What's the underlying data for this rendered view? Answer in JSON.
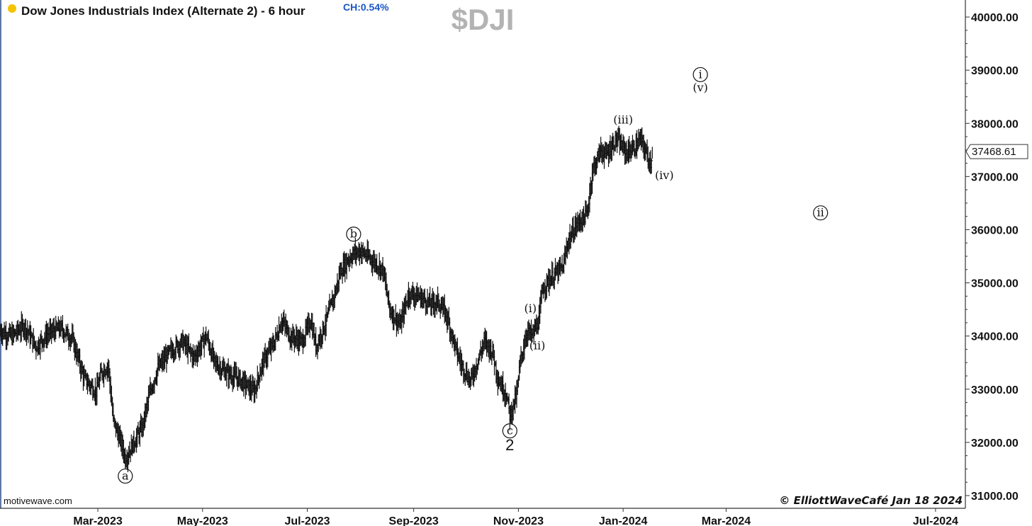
{
  "header": {
    "title": "Dow Jones Industrials Index (Alternate 2) - 6 hour",
    "change": "CH:0.54%",
    "symbol": "$DJI",
    "status_dot_color": "#f5c400"
  },
  "footer": {
    "source": "motivewave.com",
    "copyright": "© ElliottWaveCafé Jan 18 2024"
  },
  "last_price": {
    "label": "37468.61",
    "value": 37468.61
  },
  "chart_data": {
    "type": "bar",
    "title": "Dow Jones Industrials Index (Alternate 2) - 6 hour",
    "xlabel": "",
    "ylabel": "",
    "y_axis_side": "right",
    "ylim": [
      30900,
      40400
    ],
    "y_ticks": [
      31000,
      32000,
      33000,
      34000,
      35000,
      36000,
      37000,
      38000,
      39000,
      40000
    ],
    "y_tick_labels": [
      "31000.00",
      "32000.00",
      "33000.00",
      "34000.00",
      "35000.00",
      "36000.00",
      "37000.00",
      "38000.00",
      "39000.00",
      "40000.00"
    ],
    "xlim": [
      "2023-01-03",
      "2024-08-01"
    ],
    "x_ticks": [
      "2023-03-01",
      "2023-05-01",
      "2023-07-01",
      "2023-09-01",
      "2023-11-01",
      "2024-01-01",
      "2024-03-01",
      "2024-07-01"
    ],
    "x_tick_labels": [
      "Mar-2023",
      "May-2023",
      "Jul-2023",
      "Sep-2023",
      "Nov-2023",
      "Jan-2024",
      "Mar-2024",
      "Jul-2024"
    ],
    "grid": false,
    "series": [
      {
        "values": [
          [
            "2023-01-03",
            34100
          ],
          [
            "2023-01-10",
            34000
          ],
          [
            "2023-01-17",
            34200
          ],
          [
            "2023-01-24",
            33800
          ],
          [
            "2023-01-31",
            34050
          ],
          [
            "2023-02-07",
            34150
          ],
          [
            "2023-02-14",
            33950
          ],
          [
            "2023-02-21",
            33200
          ],
          [
            "2023-02-28",
            32950
          ],
          [
            "2023-03-03",
            33300
          ],
          [
            "2023-03-07",
            33450
          ],
          [
            "2023-03-10",
            32400
          ],
          [
            "2023-03-15",
            31950
          ],
          [
            "2023-03-17",
            31700
          ],
          [
            "2023-03-22",
            32000
          ],
          [
            "2023-03-27",
            32300
          ],
          [
            "2023-03-31",
            32900
          ],
          [
            "2023-04-05",
            33400
          ],
          [
            "2023-04-12",
            33700
          ],
          [
            "2023-04-19",
            33900
          ],
          [
            "2023-04-26",
            33600
          ],
          [
            "2023-05-03",
            34000
          ],
          [
            "2023-05-08",
            33500
          ],
          [
            "2023-05-15",
            33300
          ],
          [
            "2023-05-22",
            33200
          ],
          [
            "2023-05-31",
            32950
          ],
          [
            "2023-06-05",
            33500
          ],
          [
            "2023-06-12",
            33900
          ],
          [
            "2023-06-16",
            34300
          ],
          [
            "2023-06-21",
            34000
          ],
          [
            "2023-06-28",
            33900
          ],
          [
            "2023-07-03",
            34300
          ],
          [
            "2023-07-06",
            33800
          ],
          [
            "2023-07-11",
            34200
          ],
          [
            "2023-07-18",
            34900
          ],
          [
            "2023-07-20",
            35200
          ],
          [
            "2023-07-25",
            35450
          ],
          [
            "2023-07-28",
            35550
          ],
          [
            "2023-08-01",
            35600
          ],
          [
            "2023-08-07",
            35450
          ],
          [
            "2023-08-14",
            35250
          ],
          [
            "2023-08-18",
            34500
          ],
          [
            "2023-08-24",
            34200
          ],
          [
            "2023-08-29",
            34800
          ],
          [
            "2023-09-04",
            34750
          ],
          [
            "2023-09-11",
            34600
          ],
          [
            "2023-09-15",
            34650
          ],
          [
            "2023-09-20",
            34400
          ],
          [
            "2023-09-26",
            33700
          ],
          [
            "2023-09-29",
            33450
          ],
          [
            "2023-10-04",
            33150
          ],
          [
            "2023-10-09",
            33600
          ],
          [
            "2023-10-12",
            33900
          ],
          [
            "2023-10-17",
            33700
          ],
          [
            "2023-10-20",
            33200
          ],
          [
            "2023-10-25",
            32900
          ],
          [
            "2023-10-27",
            32500
          ],
          [
            "2023-10-31",
            32900
          ],
          [
            "2023-11-02",
            33500
          ],
          [
            "2023-11-06",
            34100
          ],
          [
            "2023-11-09",
            34000
          ],
          [
            "2023-11-13",
            34300
          ],
          [
            "2023-11-15",
            34900
          ],
          [
            "2023-11-20",
            35100
          ],
          [
            "2023-11-27",
            35300
          ],
          [
            "2023-11-30",
            35800
          ],
          [
            "2023-12-05",
            36100
          ],
          [
            "2023-12-11",
            36300
          ],
          [
            "2023-12-14",
            37100
          ],
          [
            "2023-12-19",
            37500
          ],
          [
            "2023-12-22",
            37400
          ],
          [
            "2023-12-28",
            37700
          ],
          [
            "2024-01-03",
            37450
          ],
          [
            "2024-01-08",
            37550
          ],
          [
            "2024-01-11",
            37700
          ],
          [
            "2024-01-15",
            37400
          ],
          [
            "2024-01-17",
            37250
          ],
          [
            "2024-01-18",
            37468.61
          ]
        ]
      }
    ],
    "annotations": [
      {
        "label": "a",
        "circled": true,
        "x": "2023-03-17",
        "y": 31300
      },
      {
        "label": "b",
        "circled": true,
        "x": "2023-07-28",
        "y": 35850
      },
      {
        "label": "c",
        "circled": true,
        "x": "2023-10-27",
        "y": 32150
      },
      {
        "label": "2",
        "circled": false,
        "x": "2023-10-27",
        "y": 31850
      },
      {
        "label": "(i)",
        "circled": false,
        "x": "2023-11-08",
        "y": 34450
      },
      {
        "label": "(ii)",
        "circled": false,
        "x": "2023-11-12",
        "y": 33750
      },
      {
        "label": "(iii)",
        "circled": false,
        "x": "2024-01-01",
        "y": 38000
      },
      {
        "label": "(iv)",
        "circled": false,
        "x": "2024-01-25",
        "y": 36950
      },
      {
        "label": "i",
        "circled": true,
        "x": "2024-02-15",
        "y": 38850
      },
      {
        "label": "(v)",
        "circled": false,
        "x": "2024-02-15",
        "y": 38600
      },
      {
        "label": "ii",
        "circled": true,
        "x": "2024-04-25",
        "y": 36250
      }
    ]
  }
}
